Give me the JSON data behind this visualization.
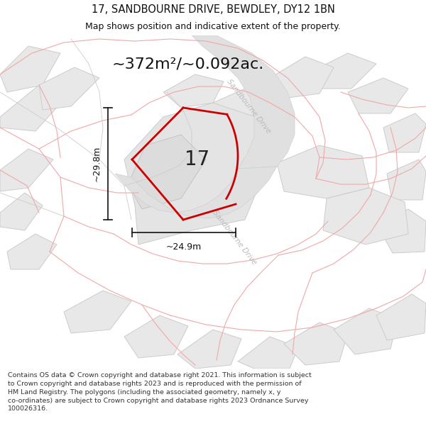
{
  "title_line1": "17, SANDBOURNE DRIVE, BEWDLEY, DY12 1BN",
  "title_line2": "Map shows position and indicative extent of the property.",
  "area_text": "~372m²/~0.092ac.",
  "label_17": "17",
  "dim_height": "~29.8m",
  "dim_width": "~24.9m",
  "road_label_top": "Sandbourne Drive",
  "road_label_bottom": "Sandbourne Drive",
  "footer_text": "Contains OS data © Crown copyright and database right 2021. This information is subject to Crown copyright and database rights 2023 and is reproduced with the permission of HM Land Registry. The polygons (including the associated geometry, namely x, y co-ordinates) are subject to Crown copyright and database rights 2023 Ordnance Survey 100026316.",
  "bg_color": "#ffffff",
  "map_bg": "#f8f8f8",
  "neighbor_fill": "#e8e8e8",
  "neighbor_edge": "#cccccc",
  "plot_border_color": "#cc0000",
  "dim_line_color": "#111111",
  "road_text_color": "#bbbbbb",
  "pink_line_color": "#f0a8a8",
  "title_color": "#111111",
  "footer_color": "#333333",
  "gray_line_color": "#cccccc"
}
